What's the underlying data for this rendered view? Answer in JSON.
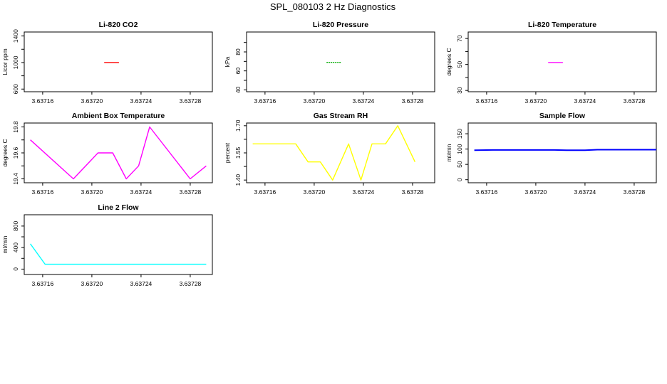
{
  "page": {
    "title": "SPL_080103  2 Hz Diagnostics"
  },
  "chart_data": [
    {
      "id": "li820-co2",
      "type": "line",
      "title": "Li-820 CO2",
      "ylabel": "Licor ppm",
      "xlabel": "",
      "color": "#ff0000",
      "xlim": [
        3.637145,
        3.637298
      ],
      "ylim": [
        560,
        1460
      ],
      "xticks": [
        3.63716,
        3.6372,
        3.63724,
        3.63728
      ],
      "xtick_labels": [
        "3.63716",
        "3.63720",
        "3.63724",
        "3.63728"
      ],
      "yticks": [
        600,
        1000,
        1400
      ],
      "ytick_labels": [
        "600",
        "1000",
        "1400"
      ],
      "yminorticks": [
        800,
        1200
      ],
      "x": [
        3.63721,
        3.637222
      ],
      "y": [
        1000,
        1000
      ]
    },
    {
      "id": "li820-pressure",
      "type": "line",
      "title": "Li-820 Pressure",
      "ylabel": "kPa",
      "xlabel": "",
      "color": "#00aa00",
      "dashed": true,
      "xlim": [
        3.637145,
        3.637298
      ],
      "ylim": [
        38,
        101
      ],
      "xticks": [
        3.63716,
        3.6372,
        3.63724,
        3.63728
      ],
      "xtick_labels": [
        "3.63716",
        "3.63720",
        "3.63724",
        "3.63728"
      ],
      "yticks": [
        40,
        60,
        80
      ],
      "ytick_labels": [
        "40",
        "60",
        "80"
      ],
      "yminorticks": [
        50,
        70,
        90
      ],
      "x": [
        3.63721,
        3.637222
      ],
      "y": [
        69,
        69
      ]
    },
    {
      "id": "li820-temperature",
      "type": "line",
      "title": "Li-820 Temperature",
      "ylabel": "degrees C",
      "xlabel": "",
      "color": "#ff00ff",
      "xlim": [
        3.637145,
        3.637298
      ],
      "ylim": [
        29,
        75
      ],
      "xticks": [
        3.63716,
        3.6372,
        3.63724,
        3.63728
      ],
      "xtick_labels": [
        "3.63716",
        "3.63720",
        "3.63724",
        "3.63728"
      ],
      "yticks": [
        30,
        50,
        70
      ],
      "ytick_labels": [
        "30",
        "50",
        "70"
      ],
      "yminorticks": [
        40,
        60
      ],
      "x": [
        3.63721,
        3.637222
      ],
      "y": [
        51.5,
        51.5
      ]
    },
    {
      "id": "ambient-box-temperature",
      "type": "line",
      "title": "Ambient Box Temperature",
      "ylabel": "degrees C",
      "xlabel": "",
      "color": "#ff00ff",
      "xlim": [
        3.637145,
        3.637298
      ],
      "ylim": [
        19.37,
        19.83
      ],
      "xticks": [
        3.63716,
        3.6372,
        3.63724,
        3.63728
      ],
      "xtick_labels": [
        "3.63716",
        "3.63720",
        "3.63724",
        "3.63728"
      ],
      "yticks": [
        19.4,
        19.6,
        19.8
      ],
      "ytick_labels": [
        "19.4",
        "19.6",
        "19.8"
      ],
      "yminorticks": [
        19.5,
        19.7
      ],
      "x": [
        3.63715,
        3.637185,
        3.637205,
        3.637217,
        3.637228,
        3.637238,
        3.637247,
        3.63728,
        3.637293
      ],
      "y": [
        19.7,
        19.4,
        19.6,
        19.6,
        19.4,
        19.5,
        19.8,
        19.4,
        19.5
      ]
    },
    {
      "id": "gas-stream-rh",
      "type": "line",
      "title": "Gas Stream RH",
      "ylabel": "percent",
      "xlabel": "",
      "color": "#ffff00",
      "xlim": [
        3.637145,
        3.637298
      ],
      "ylim": [
        1.385,
        1.715
      ],
      "xticks": [
        3.63716,
        3.6372,
        3.63724,
        3.63728
      ],
      "xtick_labels": [
        "3.63716",
        "3.63720",
        "3.63724",
        "3.63728"
      ],
      "yticks": [
        1.4,
        1.55,
        1.7
      ],
      "ytick_labels": [
        "1.40",
        "1.55",
        "1.70"
      ],
      "yminorticks": [
        1.475,
        1.625
      ],
      "x": [
        3.63715,
        3.637185,
        3.637195,
        3.637205,
        3.637215,
        3.637228,
        3.637238,
        3.637247,
        3.637258,
        3.637268,
        3.637282
      ],
      "y": [
        1.6,
        1.6,
        1.5,
        1.5,
        1.4,
        1.6,
        1.4,
        1.6,
        1.6,
        1.7,
        1.5
      ]
    },
    {
      "id": "sample-flow",
      "type": "line",
      "title": "Sample Flow",
      "ylabel": "ml/min",
      "xlabel": "",
      "color": "#0000ff",
      "xlim": [
        3.637145,
        3.637298
      ],
      "ylim": [
        -10,
        185
      ],
      "xticks": [
        3.63716,
        3.6372,
        3.63724,
        3.63728
      ],
      "xtick_labels": [
        "3.63716",
        "3.63720",
        "3.63724",
        "3.63728"
      ],
      "yticks": [
        0,
        50,
        100,
        150
      ],
      "ytick_labels": [
        "0",
        "50",
        "100",
        "150"
      ],
      "yminorticks": [],
      "x": [
        3.63715,
        3.637165,
        3.637215,
        3.637225,
        3.63724,
        3.63725,
        3.637298
      ],
      "y": [
        96,
        97,
        97,
        96,
        96,
        98,
        98
      ]
    },
    {
      "id": "line-2-flow",
      "type": "line",
      "title": "Line 2 Flow",
      "ylabel": "ml/min",
      "xlabel": "",
      "color": "#00ffff",
      "xlim": [
        3.637145,
        3.637298
      ],
      "ylim": [
        -100,
        1010
      ],
      "xticks": [
        3.63716,
        3.6372,
        3.63724,
        3.63728
      ],
      "xtick_labels": [
        "3.63716",
        "3.63720",
        "3.63724",
        "3.63728"
      ],
      "yticks": [
        0,
        400,
        800
      ],
      "ytick_labels": [
        "0",
        "400",
        "800"
      ],
      "yminorticks": [
        200,
        600
      ],
      "x": [
        3.63715,
        3.637162,
        3.637293
      ],
      "y": [
        470,
        90,
        90
      ]
    }
  ]
}
